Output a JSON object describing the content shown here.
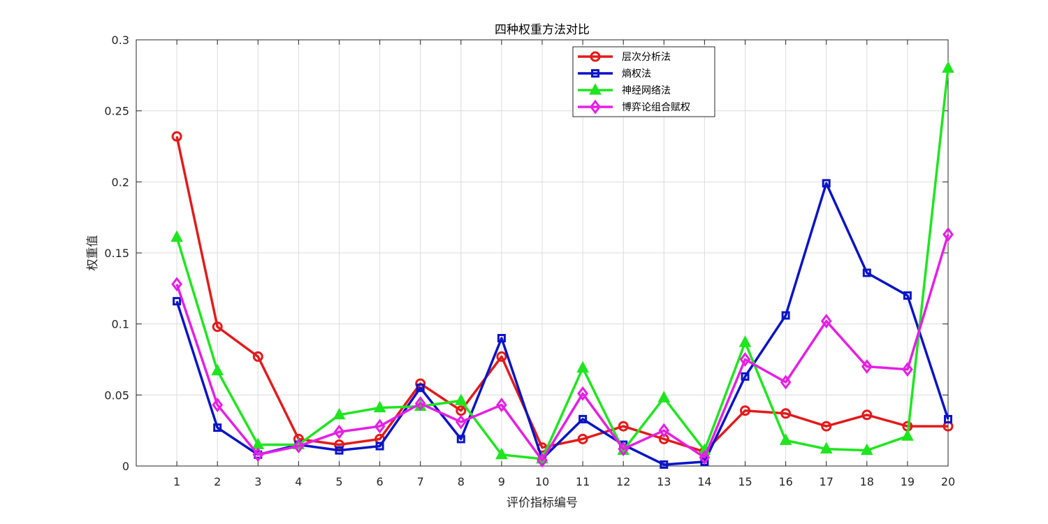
{
  "chart_data": {
    "type": "line",
    "title": "四种权重方法对比",
    "xlabel": "评价指标编号",
    "ylabel": "权重值",
    "x": [
      1,
      2,
      3,
      4,
      5,
      6,
      7,
      8,
      9,
      10,
      11,
      12,
      13,
      14,
      15,
      16,
      17,
      18,
      19,
      20
    ],
    "xlim": [
      0,
      20
    ],
    "ylim": [
      0,
      0.3
    ],
    "xticks": [
      "1",
      "2",
      "3",
      "4",
      "5",
      "6",
      "7",
      "8",
      "9",
      "10",
      "11",
      "12",
      "13",
      "14",
      "15",
      "16",
      "17",
      "18",
      "19",
      "20"
    ],
    "yticks": [
      "0",
      "0.05",
      "0.1",
      "0.15",
      "0.2",
      "0.25",
      "0.3"
    ],
    "grid": true,
    "legend_position": "top-right",
    "series": [
      {
        "name": "层次分析法",
        "color": "#e41a1a",
        "marker": "circle",
        "values": [
          0.232,
          0.098,
          0.077,
          0.019,
          0.015,
          0.019,
          0.058,
          0.039,
          0.077,
          0.013,
          0.019,
          0.028,
          0.019,
          0.01,
          0.039,
          0.037,
          0.028,
          0.036,
          0.028,
          0.028
        ]
      },
      {
        "name": "熵权法",
        "color": "#0a14c8",
        "marker": "square",
        "values": [
          0.116,
          0.027,
          0.008,
          0.015,
          0.011,
          0.014,
          0.055,
          0.019,
          0.09,
          0.005,
          0.033,
          0.015,
          0.001,
          0.003,
          0.063,
          0.106,
          0.199,
          0.136,
          0.12,
          0.033
        ]
      },
      {
        "name": "神经网络法",
        "color": "#1ee61e",
        "marker": "triangle",
        "values": [
          0.161,
          0.067,
          0.015,
          0.015,
          0.036,
          0.041,
          0.042,
          0.046,
          0.008,
          0.005,
          0.069,
          0.011,
          0.048,
          0.011,
          0.087,
          0.018,
          0.012,
          0.011,
          0.021,
          0.28
        ]
      },
      {
        "name": "博弈论组合赋权",
        "color": "#e61ee6",
        "marker": "diamond",
        "values": [
          0.128,
          0.043,
          0.008,
          0.014,
          0.024,
          0.028,
          0.044,
          0.031,
          0.043,
          0.004,
          0.051,
          0.012,
          0.025,
          0.006,
          0.075,
          0.059,
          0.102,
          0.07,
          0.068,
          0.163
        ]
      }
    ]
  }
}
